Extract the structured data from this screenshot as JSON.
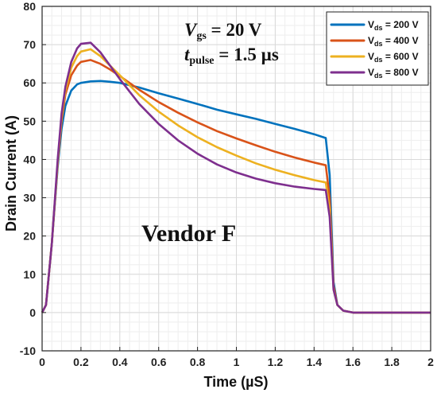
{
  "chart_data": {
    "type": "line",
    "xlabel": "Time (µS)",
    "ylabel": "Drain Current (A)",
    "xlim": [
      0,
      2
    ],
    "ylim": [
      -10,
      80
    ],
    "xticks": [
      0,
      0.2,
      0.4,
      0.6,
      0.8,
      1,
      1.2,
      1.4,
      1.6,
      1.8,
      2
    ],
    "yticks": [
      -10,
      0,
      10,
      20,
      30,
      40,
      50,
      60,
      70,
      80
    ],
    "xtick_labels": [
      "0",
      "0.2",
      "0.4",
      "0.6",
      "0.8",
      "1",
      "1.2",
      "1.4",
      "1.6",
      "1.8",
      "2"
    ],
    "ytick_labels": [
      "-10",
      "0",
      "10",
      "20",
      "30",
      "40",
      "50",
      "60",
      "70",
      "80"
    ],
    "grid": true,
    "legend_position": "top-right",
    "annotation_vgs": {
      "symbol": "V",
      "sub": "gs",
      "value": " = 20 V"
    },
    "annotation_tpulse": {
      "symbol": "t",
      "sub": "pulse",
      "value": " = 1.5 µs"
    },
    "annotation_vendor": "Vendor F",
    "series": [
      {
        "name": "V_ds = 200 V",
        "legend_main": "V",
        "legend_sub": "ds",
        "legend_value": " = 200 V",
        "color": "#0072BD",
        "x": [
          0,
          0.02,
          0.05,
          0.08,
          0.1,
          0.12,
          0.15,
          0.18,
          0.2,
          0.25,
          0.3,
          0.35,
          0.4,
          0.5,
          0.6,
          0.7,
          0.8,
          0.9,
          1.0,
          1.1,
          1.2,
          1.3,
          1.4,
          1.46,
          1.48,
          1.5,
          1.52,
          1.55,
          1.6,
          1.7,
          1.8,
          1.9,
          2.0
        ],
        "y": [
          0,
          2,
          18,
          38,
          48,
          54,
          58,
          59.6,
          60,
          60.4,
          60.5,
          60.3,
          60.0,
          58.8,
          57.3,
          55.9,
          54.5,
          53.0,
          51.8,
          50.6,
          49.3,
          48.0,
          46.6,
          45.6,
          36,
          8,
          2,
          0.5,
          0,
          0,
          0,
          0,
          0
        ]
      },
      {
        "name": "V_ds = 400 V",
        "legend_main": "V",
        "legend_sub": "ds",
        "legend_value": " = 400 V",
        "color": "#D95319",
        "x": [
          0,
          0.02,
          0.05,
          0.08,
          0.1,
          0.12,
          0.15,
          0.18,
          0.2,
          0.25,
          0.3,
          0.35,
          0.4,
          0.5,
          0.6,
          0.7,
          0.8,
          0.9,
          1.0,
          1.1,
          1.2,
          1.3,
          1.4,
          1.46,
          1.48,
          1.5,
          1.52,
          1.55,
          1.6,
          1.7,
          1.8,
          1.9,
          2.0
        ],
        "y": [
          0,
          2,
          18,
          39,
          50,
          57,
          62,
          64.5,
          65.5,
          66,
          65,
          63.5,
          61.8,
          58.2,
          55.0,
          52.2,
          49.7,
          47.4,
          45.5,
          43.7,
          42.0,
          40.5,
          39.2,
          38.5,
          30,
          7,
          2,
          0.5,
          0,
          0,
          0,
          0,
          0
        ]
      },
      {
        "name": "V_ds = 600 V",
        "legend_main": "V",
        "legend_sub": "ds",
        "legend_value": " = 600 V",
        "color": "#EDB120",
        "x": [
          0,
          0.02,
          0.05,
          0.08,
          0.1,
          0.12,
          0.15,
          0.18,
          0.2,
          0.25,
          0.3,
          0.35,
          0.4,
          0.5,
          0.6,
          0.7,
          0.8,
          0.9,
          1.0,
          1.1,
          1.2,
          1.3,
          1.4,
          1.46,
          1.48,
          1.5,
          1.52,
          1.55,
          1.6,
          1.7,
          1.8,
          1.9,
          2.0
        ],
        "y": [
          0,
          2,
          18,
          39,
          51,
          58,
          64,
          67,
          68.2,
          68.8,
          67,
          64.5,
          62,
          56.8,
          52.5,
          48.9,
          45.8,
          43.2,
          41.0,
          39.0,
          37.3,
          35.9,
          34.6,
          34.0,
          27,
          6,
          2,
          0.5,
          0,
          0,
          0,
          0,
          0
        ]
      },
      {
        "name": "V_ds = 800 V",
        "legend_main": "V",
        "legend_sub": "ds",
        "legend_value": " = 800 V",
        "color": "#7E2F8E",
        "x": [
          0,
          0.02,
          0.05,
          0.08,
          0.1,
          0.12,
          0.15,
          0.18,
          0.2,
          0.25,
          0.3,
          0.35,
          0.4,
          0.5,
          0.6,
          0.7,
          0.8,
          0.9,
          1.0,
          1.1,
          1.2,
          1.3,
          1.4,
          1.46,
          1.48,
          1.5,
          1.52,
          1.55,
          1.6,
          1.7,
          1.8,
          1.9,
          2.0
        ],
        "y": [
          0,
          2,
          18,
          40,
          52,
          59,
          65.5,
          69,
          70.2,
          70.5,
          68,
          64.5,
          61,
          54.5,
          49.3,
          45.0,
          41.5,
          38.7,
          36.6,
          35.0,
          33.8,
          32.9,
          32.3,
          32.0,
          25,
          6,
          2,
          0.5,
          0,
          0,
          0,
          0,
          0
        ]
      }
    ]
  }
}
